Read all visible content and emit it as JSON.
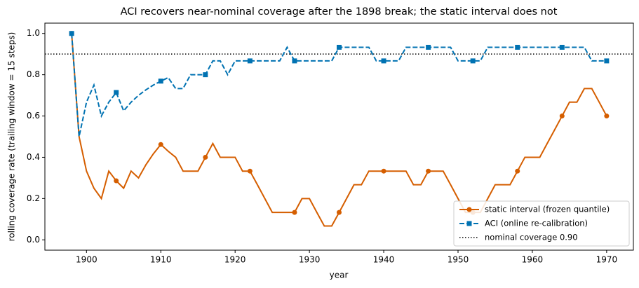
{
  "chart_data": {
    "type": "line",
    "title": "ACI recovers near-nominal coverage after the 1898 break; the static interval does not",
    "x_label": "year",
    "y_label": "rolling coverage rate (trailing window = 15 steps)",
    "x": [
      1898,
      1899,
      1900,
      1901,
      1902,
      1903,
      1904,
      1905,
      1906,
      1907,
      1908,
      1909,
      1910,
      1911,
      1912,
      1913,
      1914,
      1915,
      1916,
      1917,
      1918,
      1919,
      1920,
      1921,
      1922,
      1923,
      1924,
      1925,
      1926,
      1927,
      1928,
      1929,
      1930,
      1931,
      1932,
      1933,
      1934,
      1935,
      1936,
      1937,
      1938,
      1939,
      1940,
      1941,
      1942,
      1943,
      1944,
      1945,
      1946,
      1947,
      1948,
      1949,
      1950,
      1951,
      1952,
      1953,
      1954,
      1955,
      1956,
      1957,
      1958,
      1959,
      1960,
      1961,
      1962,
      1963,
      1964,
      1965,
      1966,
      1967,
      1968,
      1969,
      1970
    ],
    "series": [
      {
        "name": "static interval (frozen quantile)",
        "color": "#d55e00",
        "marker": "circle",
        "dash": "solid",
        "values": [
          1.0,
          0.5,
          0.333,
          0.25,
          0.2,
          0.333,
          0.286,
          0.25,
          0.333,
          0.3,
          0.364,
          0.417,
          0.462,
          0.429,
          0.4,
          0.333,
          0.333,
          0.333,
          0.4,
          0.467,
          0.4,
          0.4,
          0.4,
          0.333,
          0.333,
          0.267,
          0.2,
          0.133,
          0.133,
          0.133,
          0.133,
          0.2,
          0.2,
          0.133,
          0.067,
          0.067,
          0.133,
          0.2,
          0.267,
          0.267,
          0.333,
          0.333,
          0.333,
          0.333,
          0.333,
          0.333,
          0.267,
          0.267,
          0.333,
          0.333,
          0.333,
          0.267,
          0.2,
          0.133,
          0.133,
          0.133,
          0.2,
          0.267,
          0.267,
          0.267,
          0.333,
          0.4,
          0.4,
          0.4,
          0.467,
          0.533,
          0.6,
          0.667,
          0.667,
          0.733,
          0.733,
          0.667,
          0.6
        ]
      },
      {
        "name": "ACI (online re-calibration)",
        "color": "#0072b2",
        "marker": "square",
        "dash": "dashed",
        "values": [
          1.0,
          0.5,
          0.667,
          0.75,
          0.6,
          0.667,
          0.714,
          0.625,
          0.667,
          0.7,
          0.727,
          0.75,
          0.769,
          0.786,
          0.733,
          0.733,
          0.8,
          0.8,
          0.8,
          0.867,
          0.867,
          0.8,
          0.867,
          0.867,
          0.867,
          0.867,
          0.867,
          0.867,
          0.867,
          0.933,
          0.867,
          0.867,
          0.867,
          0.867,
          0.867,
          0.867,
          0.933,
          0.933,
          0.933,
          0.933,
          0.933,
          0.867,
          0.867,
          0.867,
          0.867,
          0.933,
          0.933,
          0.933,
          0.933,
          0.933,
          0.933,
          0.933,
          0.867,
          0.867,
          0.867,
          0.867,
          0.933,
          0.933,
          0.933,
          0.933,
          0.933,
          0.933,
          0.933,
          0.933,
          0.933,
          0.933,
          0.933,
          0.933,
          0.933,
          0.933,
          0.867,
          0.867,
          0.867
        ]
      }
    ],
    "reference_line": {
      "value": 0.9,
      "label": "nominal coverage 0.90",
      "color": "#000000"
    },
    "xlim": [
      1894.4,
      1973.6
    ],
    "ylim": [
      -0.05,
      1.05
    ],
    "xticks": [
      1900,
      1910,
      1920,
      1930,
      1940,
      1950,
      1960,
      1970
    ],
    "yticks": [
      {
        "value": 0,
        "label": "0.0"
      },
      0.2,
      0.4,
      0.6,
      0.8,
      {
        "value": 1,
        "label": "1.0"
      }
    ],
    "legend": "lower right"
  }
}
